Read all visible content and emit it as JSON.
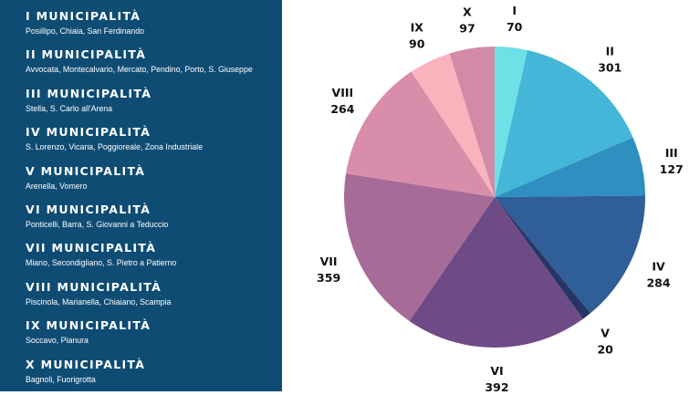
{
  "chart_data": {
    "type": "pie",
    "title": "",
    "legend_placement": "left",
    "slices": [
      {
        "label": "I",
        "value": 70,
        "color": "#6fe0e6"
      },
      {
        "label": "II",
        "value": 301,
        "color": "#44b7d8"
      },
      {
        "label": "III",
        "value": 127,
        "color": "#2e8fc0"
      },
      {
        "label": "IV",
        "value": 284,
        "color": "#2f5e98"
      },
      {
        "label": "V",
        "value": 20,
        "color": "#273566"
      },
      {
        "label": "VI",
        "value": 392,
        "color": "#6e4a86"
      },
      {
        "label": "VII",
        "value": 359,
        "color": "#a66b97"
      },
      {
        "label": "VIII",
        "value": 264,
        "color": "#d88daa"
      },
      {
        "label": "IX",
        "value": 90,
        "color": "#f9b3bd"
      },
      {
        "label": "X",
        "value": 97,
        "color": "#d18ba6"
      }
    ]
  },
  "legend": {
    "items": [
      {
        "title": "I MUNICIPALITÀ",
        "areas": "Posillipo, Chiaia, San Ferdinando"
      },
      {
        "title": "II MUNICIPALITÀ",
        "areas": "Avvocata, Montecalvario, Mercato, Pendino, Porto, S. Giuseppe"
      },
      {
        "title": "III MUNICIPALITÀ",
        "areas": "Stella, S. Carlo all'Arena"
      },
      {
        "title": "IV MUNICIPALITÀ",
        "areas": "S. Lorenzo, Vicaria, Poggioreale, Zona Industriale"
      },
      {
        "title": "V MUNICIPALITÀ",
        "areas": "Arenella, Vomero"
      },
      {
        "title": "VI MUNICIPALITÀ",
        "areas": "Ponticelli, Barra, S. Giovanni a Teduccio"
      },
      {
        "title": "VII MUNICIPALITÀ",
        "areas": "Miano, Secondigliano, S. Pietro a Patierno"
      },
      {
        "title": "VIII MUNICIPALITÀ",
        "areas": "Piscinola, Marianella, Chiaiano, Scampia"
      },
      {
        "title": "IX MUNICIPALITÀ",
        "areas": "Soccavo, Pianura"
      },
      {
        "title": "X MUNICIPALITÀ",
        "areas": "Bagnoli, Fuorigrotta"
      }
    ]
  },
  "colors": {
    "panel_background": "#0f4c74",
    "panel_text": "#ffffff",
    "label_text": "#111111"
  }
}
